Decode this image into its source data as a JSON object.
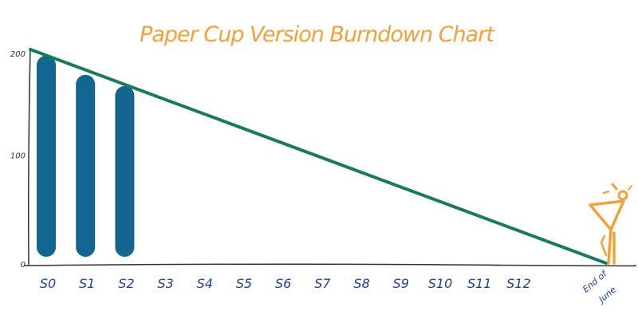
{
  "chart_data": {
    "type": "bar",
    "title": "Paper Cup Version Burndown Chart",
    "xlabel": "",
    "ylabel": "",
    "categories": [
      "S0",
      "S1",
      "S2",
      "S3",
      "S4",
      "S5",
      "S6",
      "S7",
      "S8",
      "S9",
      "S10",
      "S11",
      "S12"
    ],
    "end_label": [
      "End of",
      "June"
    ],
    "values": [
      198,
      179,
      168,
      null,
      null,
      null,
      null,
      null,
      null,
      null,
      null,
      null,
      null
    ],
    "ideal_line": {
      "start": 200,
      "end": 0
    },
    "yticks": [
      "0",
      "100",
      "200"
    ],
    "ylim": [
      0,
      200
    ],
    "grid": false
  },
  "colors": {
    "title": "#f0a13a",
    "bars": "#126690",
    "ideal_line": "#1a7a5a",
    "axis": "#333333",
    "tick_labels": "#1f3f8f",
    "figure": "#f0a13a"
  },
  "decoration": {
    "icon": "paper-cup-figure-icon"
  }
}
